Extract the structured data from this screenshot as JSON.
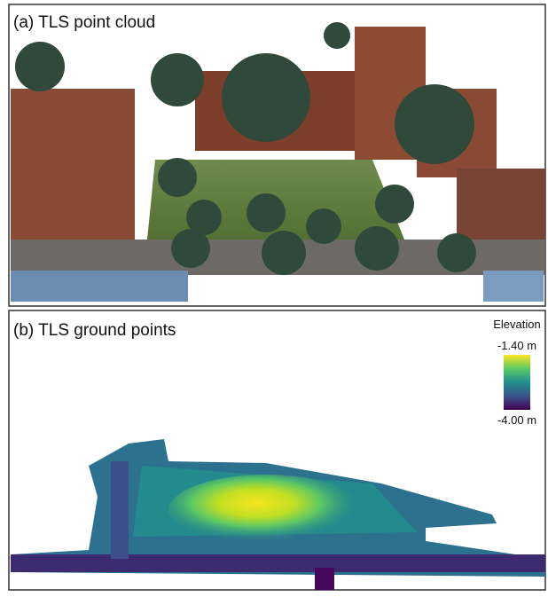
{
  "panels": [
    {
      "title": "(a) TLS point cloud"
    },
    {
      "title": "(b) TLS ground points",
      "colorbar": {
        "title": "Elevation",
        "max_label": "-1.40 m",
        "min_label": "-4.00 m"
      }
    }
  ]
}
